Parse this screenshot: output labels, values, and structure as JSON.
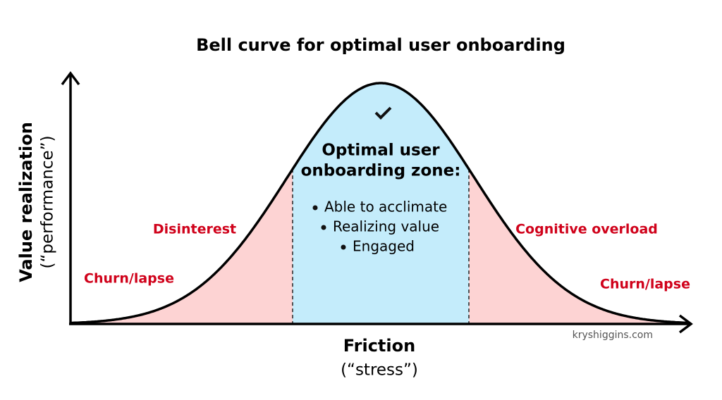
{
  "title": "Bell curve for optimal user onboarding",
  "y_axis": {
    "label": "Value realization",
    "sublabel": "(“performance”)"
  },
  "x_axis": {
    "label": "Friction",
    "sublabel": "(“stress”)"
  },
  "zone": {
    "title_lines": [
      "Optimal user",
      "onboarding zone:"
    ],
    "items": [
      "Able to acclimate",
      "Realizing value",
      "Engaged"
    ]
  },
  "regions": {
    "left_upper": "Disinterest",
    "left_lower": "Churn/lapse",
    "right_upper": "Cognitive overload",
    "right_lower": "Churn/lapse"
  },
  "credit": "kryshiggins.com"
}
